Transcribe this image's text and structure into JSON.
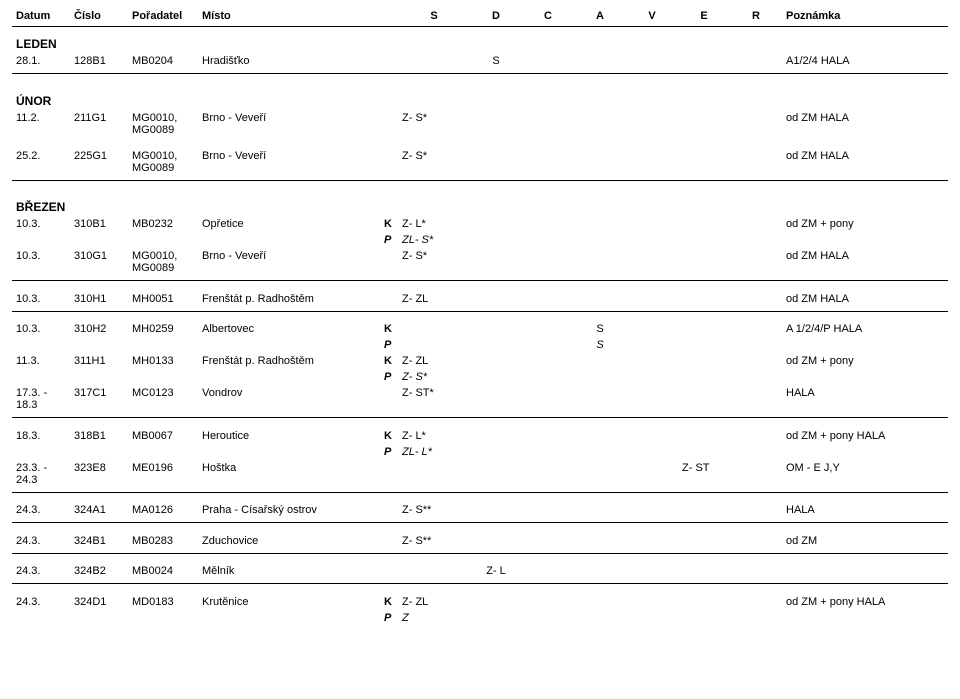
{
  "headers": {
    "datum": "Datum",
    "cislo": "Číslo",
    "poradatel": "Pořadatel",
    "misto": "Místo",
    "s": "S",
    "d": "D",
    "c": "C",
    "a": "A",
    "v": "V",
    "e": "E",
    "r": "R",
    "poznamka": "Poznámka"
  },
  "months": {
    "leden": "LEDEN",
    "unor": "ÚNOR",
    "brezen": "BŘEZEN"
  },
  "rows": {
    "r1": {
      "datum": "28.1.",
      "cislo": "128B1",
      "por": "MB0204",
      "misto": "Hradišťko",
      "d": "S",
      "poz": "A1/2/4 HALA"
    },
    "r2": {
      "datum": "11.2.",
      "cislo": "211G1",
      "por": "MG0010, MG0089",
      "misto": "Brno - Veveří",
      "s": "Z- S*",
      "poz": "od ZM HALA"
    },
    "r3": {
      "datum": "25.2.",
      "cislo": "225G1",
      "por": "MG0010, MG0089",
      "misto": "Brno - Veveří",
      "s": "Z- S*",
      "poz": "od ZM HALA"
    },
    "r4": {
      "datum": "10.3.",
      "cislo": "310B1",
      "por": "MB0232",
      "misto": "Opřetice",
      "kp": "K",
      "s": "Z- L*",
      "poz": "od ZM + pony"
    },
    "r4p": {
      "kp": "P",
      "s": "ZL- S*"
    },
    "r5": {
      "datum": "10.3.",
      "cislo": "310G1",
      "por": "MG0010, MG0089",
      "misto": "Brno - Veveří",
      "s": "Z- S*",
      "poz": "od ZM HALA"
    },
    "r6": {
      "datum": "10.3.",
      "cislo": "310H1",
      "por": "MH0051",
      "misto": "Frenštát p. Radhoštěm",
      "s": "Z- ZL",
      "poz": "od ZM HALA"
    },
    "r7": {
      "datum": "10.3.",
      "cislo": "310H2",
      "por": "MH0259",
      "misto": "Albertovec",
      "kp": "K",
      "a": "S",
      "poz": "A 1/2/4/P HALA"
    },
    "r7p": {
      "kp": "P",
      "a": "S"
    },
    "r8": {
      "datum": "11.3.",
      "cislo": "311H1",
      "por": "MH0133",
      "misto": "Frenštát p. Radhoštěm",
      "kp": "K",
      "s": "Z- ZL",
      "poz": "od ZM + pony"
    },
    "r8p": {
      "kp": "P",
      "s": "Z- S*"
    },
    "r9": {
      "datum": "17.3. - 18.3",
      "cislo": "317C1",
      "por": "MC0123",
      "misto": "Vondrov",
      "s": "Z- ST*",
      "poz": "HALA"
    },
    "r10": {
      "datum": "18.3.",
      "cislo": "318B1",
      "por": "MB0067",
      "misto": "Heroutice",
      "kp": "K",
      "s": "Z- L*",
      "poz": "od ZM + pony HALA"
    },
    "r10p": {
      "kp": "P",
      "s": "ZL- L*"
    },
    "r11": {
      "datum": "23.3. - 24.3",
      "cislo": "323E8",
      "por": "ME0196",
      "misto": "Hoštka",
      "e": "Z- ST",
      "poz": "OM - E J,Y"
    },
    "r12": {
      "datum": "24.3.",
      "cislo": "324A1",
      "por": "MA0126",
      "misto": "Praha - Císařský ostrov",
      "s": "Z- S**",
      "poz": "HALA"
    },
    "r13": {
      "datum": "24.3.",
      "cislo": "324B1",
      "por": "MB0283",
      "misto": "Zduchovice",
      "s": "Z- S**",
      "poz": "od ZM"
    },
    "r14": {
      "datum": "24.3.",
      "cislo": "324B2",
      "por": "MB0024",
      "misto": "Mělník",
      "d": "Z- L"
    },
    "r15": {
      "datum": "24.3.",
      "cislo": "324D1",
      "por": "MD0183",
      "misto": "Krutěnice",
      "kp": "K",
      "s": "Z- ZL",
      "poz": "od ZM + pony HALA"
    },
    "r15p": {
      "kp": "P",
      "s": "Z"
    }
  }
}
